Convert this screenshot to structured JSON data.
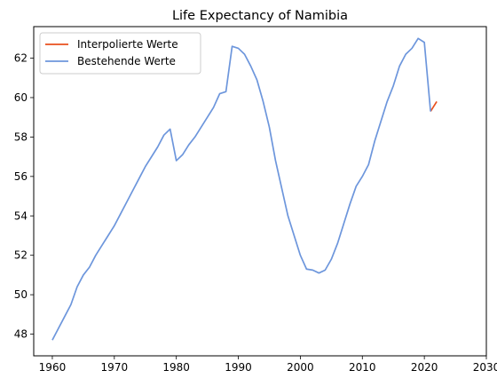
{
  "chart_data": {
    "type": "line",
    "title": "Life Expectancy of Namibia",
    "xlabel": "",
    "ylabel": "",
    "xlim": [
      1957,
      2030
    ],
    "ylim": [
      46.9,
      63.6
    ],
    "xticks": [
      1960,
      1970,
      1980,
      1990,
      2000,
      2010,
      2020,
      2030
    ],
    "yticks": [
      48,
      50,
      52,
      54,
      56,
      58,
      60,
      62
    ],
    "grid": false,
    "legend_position": "top-left",
    "series": [
      {
        "name": "Interpolierte Werte",
        "color": "#e8501e",
        "x": [
          2021,
          2022
        ],
        "y": [
          59.3,
          59.8
        ]
      },
      {
        "name": "Bestehende Werte",
        "color": "#6d96dc",
        "x": [
          1960,
          1961,
          1962,
          1963,
          1964,
          1965,
          1966,
          1967,
          1968,
          1969,
          1970,
          1971,
          1972,
          1973,
          1974,
          1975,
          1976,
          1977,
          1978,
          1979,
          1980,
          1981,
          1982,
          1983,
          1984,
          1985,
          1986,
          1987,
          1988,
          1989,
          1990,
          1991,
          1992,
          1993,
          1994,
          1995,
          1996,
          1997,
          1998,
          1999,
          2000,
          2001,
          2002,
          2003,
          2004,
          2005,
          2006,
          2007,
          2008,
          2009,
          2010,
          2011,
          2012,
          2013,
          2014,
          2015,
          2016,
          2017,
          2018,
          2019,
          2020,
          2021
        ],
        "y": [
          47.7,
          48.3,
          48.9,
          49.5,
          50.4,
          51.0,
          51.4,
          52.0,
          52.5,
          53.0,
          53.5,
          54.1,
          54.7,
          55.3,
          55.9,
          56.5,
          57.0,
          57.5,
          58.1,
          58.4,
          56.8,
          57.1,
          57.6,
          58.0,
          58.5,
          59.0,
          59.5,
          60.2,
          60.3,
          62.6,
          62.5,
          62.2,
          61.6,
          60.9,
          59.8,
          58.5,
          56.8,
          55.4,
          54.0,
          53.0,
          52.0,
          51.3,
          51.25,
          51.1,
          51.25,
          51.8,
          52.6,
          53.6,
          54.6,
          55.5,
          56.0,
          56.6,
          57.8,
          58.8,
          59.8,
          60.6,
          61.6,
          62.2,
          62.5,
          63.0,
          62.8,
          59.3
        ]
      }
    ]
  }
}
